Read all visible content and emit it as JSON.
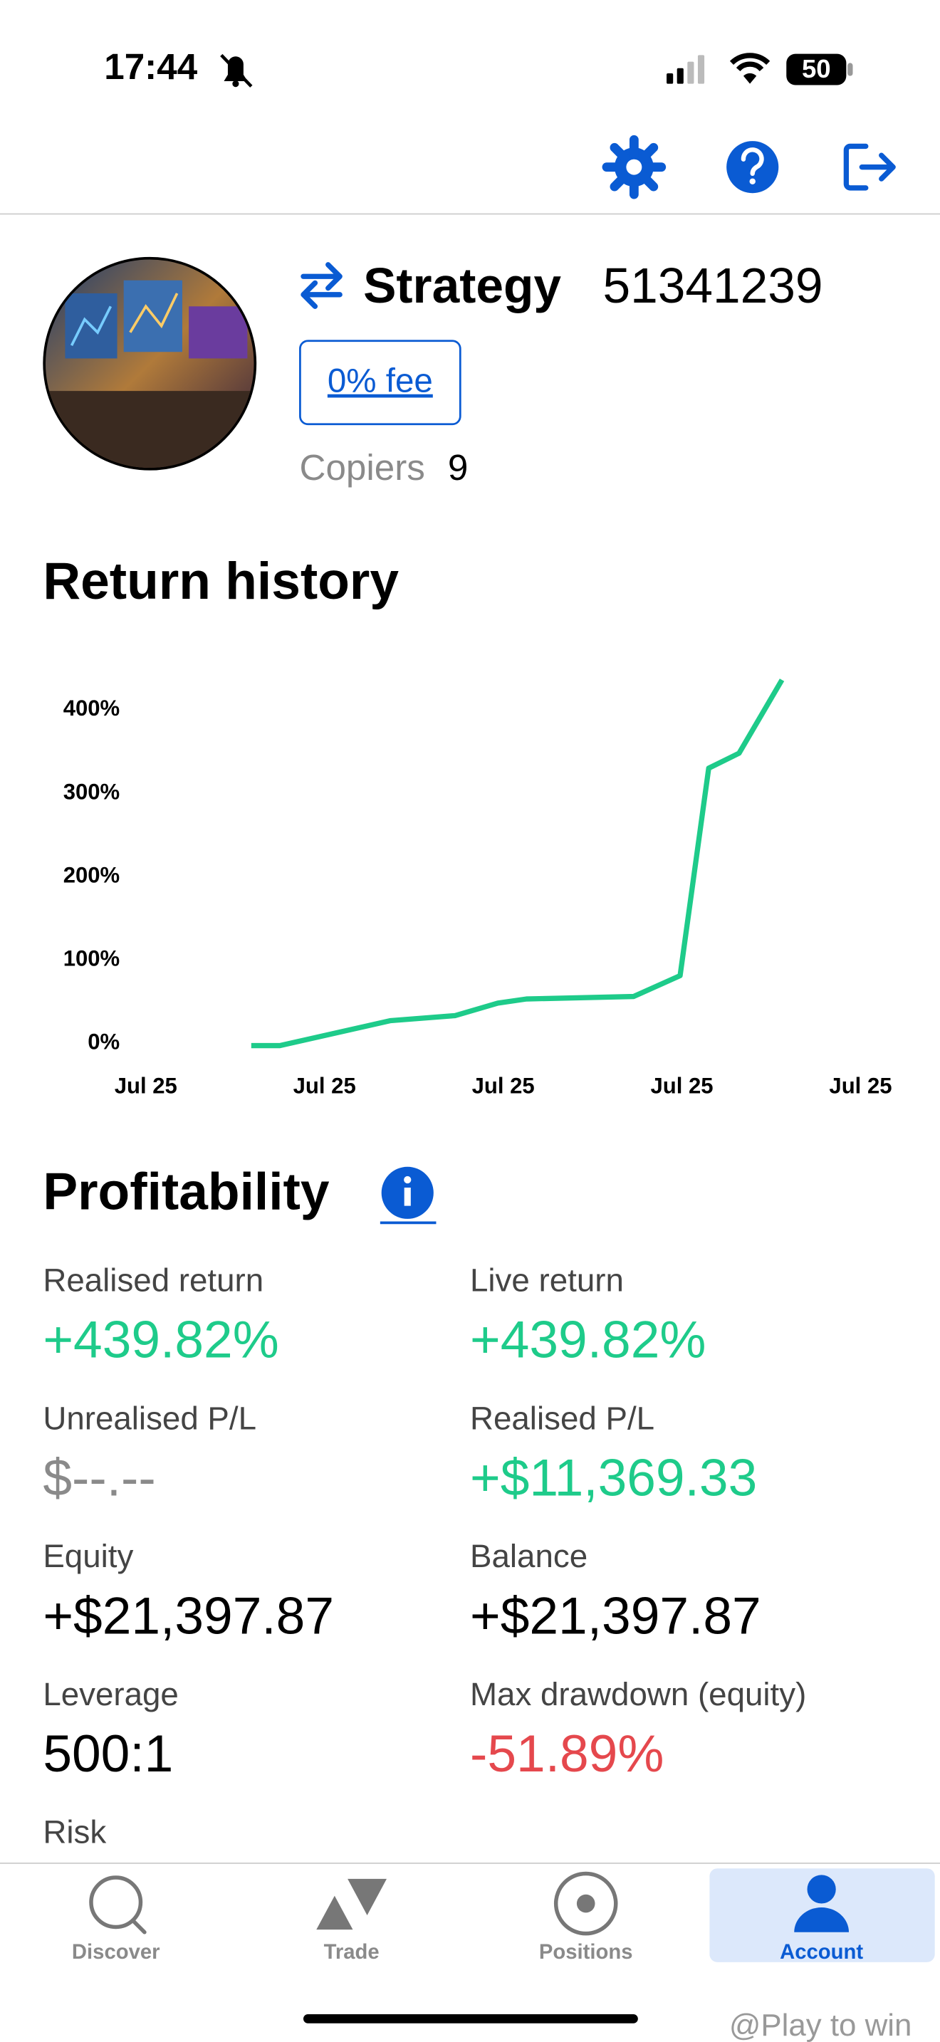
{
  "status_bar": {
    "time": "17:44",
    "battery": "50"
  },
  "strategy": {
    "name": "Strategy",
    "id": "51341239",
    "fee": "0% fee",
    "copiers_label": "Copiers",
    "copiers": "9"
  },
  "chart_data": {
    "type": "line",
    "title": "Return history",
    "x": [
      0.59,
      0.75,
      1.37,
      1.73,
      1.97,
      2.13,
      2.73,
      2.99,
      3.15,
      3.32,
      3.56
    ],
    "series": [
      {
        "name": "Return",
        "color": "#1ecb8a",
        "values": [
          -3,
          -3,
          27,
          33,
          48,
          53,
          56,
          81,
          330,
          348,
          436
        ]
      }
    ],
    "xlim": [
      0,
      4
    ],
    "xticks": [
      {
        "value": 0,
        "label": "Jul 25"
      },
      {
        "value": 1,
        "label": "Jul 25"
      },
      {
        "value": 2,
        "label": "Jul 25"
      },
      {
        "value": 3,
        "label": "Jul 25"
      },
      {
        "value": 4,
        "label": "Jul 25"
      }
    ],
    "ylim": [
      -5,
      450
    ],
    "yticks": [
      {
        "value": 0,
        "label": "0%"
      },
      {
        "value": 100,
        "label": "100%"
      },
      {
        "value": 200,
        "label": "200%"
      },
      {
        "value": 300,
        "label": "300%"
      },
      {
        "value": 400,
        "label": "400%"
      }
    ],
    "grid": false
  },
  "profitability": {
    "title": "Profitability",
    "metrics": [
      {
        "label": "Realised return",
        "value": "+439.82%",
        "color": "#1ecb8a"
      },
      {
        "label": "Live return",
        "value": "+439.82%",
        "color": "#1ecb8a"
      },
      {
        "label": "Unrealised P/L",
        "value": "$--.--",
        "color": "#8a8a8a"
      },
      {
        "label": "Realised P/L",
        "value": "+$11,369.33",
        "color": "#1ecb8a"
      },
      {
        "label": "Equity",
        "value": "+$21,397.87",
        "color": "#000000"
      },
      {
        "label": "Balance",
        "value": "+$21,397.87",
        "color": "#000000"
      },
      {
        "label": "Leverage",
        "value": "500:1",
        "color": "#000000"
      },
      {
        "label": "Max drawdown (equity)",
        "value": "-51.89%",
        "color": "#e5484d"
      }
    ],
    "risk_label": "Risk"
  },
  "nav": [
    {
      "label": "Discover",
      "active": false
    },
    {
      "label": "Trade",
      "active": false
    },
    {
      "label": "Positions",
      "active": false
    },
    {
      "label": "Account",
      "active": true
    }
  ],
  "watermark": "@Play to win"
}
